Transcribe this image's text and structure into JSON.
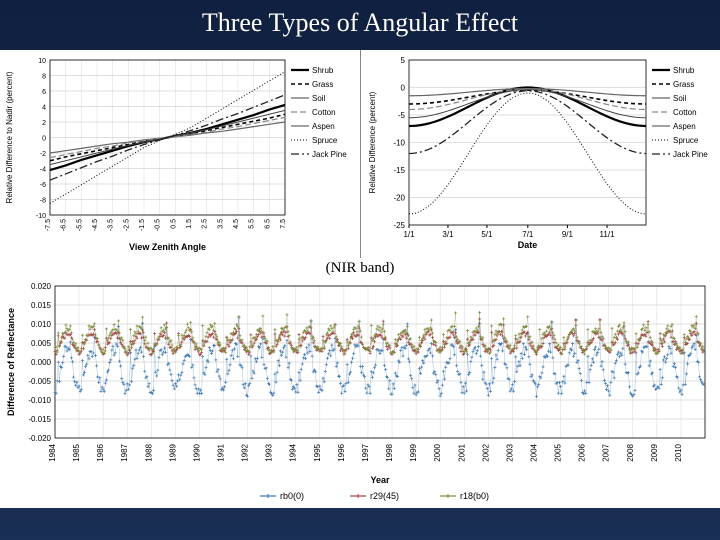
{
  "title": "Three Types of Angular Effect",
  "subtitle": "(NIR band)",
  "colors": {
    "slide_bg_top": "#102040",
    "slide_bg_bot": "#1a2f55",
    "panel_bg": "#ffffff",
    "axis": "#000000",
    "grid": "#bfbfbf"
  },
  "chartA": {
    "type": "line",
    "xlabel": "View Zenith Angle",
    "ylabel": "Relative Difference to Nadir (percent)",
    "xlim": [
      -7.5,
      7.5
    ],
    "ylim": [
      -10,
      10
    ],
    "yticks": [
      -10,
      -8,
      -6,
      -4,
      -2,
      0,
      2,
      4,
      6,
      8,
      10
    ],
    "xticks": [
      -7.5,
      -6.5,
      -5.5,
      -4.5,
      -3.5,
      -2.5,
      -1.5,
      -0.5,
      0.5,
      1.5,
      2.5,
      3.5,
      4.5,
      5.5,
      6.5,
      7.5
    ],
    "series": [
      {
        "name": "Shrub",
        "color": "#000000",
        "dash": "",
        "width": 2.2,
        "y": [
          -4.2,
          -3.6,
          -2.9,
          -2.3,
          -1.7,
          -1.1,
          -0.6,
          -0.2,
          0.2,
          0.6,
          1.1,
          1.7,
          2.3,
          2.9,
          3.6,
          4.2
        ]
      },
      {
        "name": "Grass",
        "color": "#000000",
        "dash": "4,3",
        "width": 1.6,
        "y": [
          -3.0,
          -2.5,
          -2.1,
          -1.7,
          -1.3,
          -0.9,
          -0.5,
          -0.2,
          0.2,
          0.5,
          0.9,
          1.3,
          1.7,
          2.1,
          2.5,
          3.0
        ]
      },
      {
        "name": "Soil",
        "color": "#666666",
        "dash": "",
        "width": 1.2,
        "y": [
          -2.0,
          -1.7,
          -1.4,
          -1.1,
          -0.8,
          -0.6,
          -0.3,
          -0.1,
          0.1,
          0.3,
          0.6,
          0.8,
          1.1,
          1.4,
          1.7,
          2.0
        ]
      },
      {
        "name": "Cotton",
        "color": "#888888",
        "dash": "6,3",
        "width": 1.2,
        "y": [
          -2.6,
          -2.2,
          -1.8,
          -1.4,
          -1.1,
          -0.7,
          -0.4,
          -0.1,
          0.1,
          0.4,
          0.7,
          1.1,
          1.4,
          1.8,
          2.2,
          2.6
        ]
      },
      {
        "name": "Aspen",
        "color": "#444444",
        "dash": "",
        "width": 1.0,
        "y": [
          -3.5,
          -3.0,
          -2.5,
          -2.0,
          -1.5,
          -1.0,
          -0.6,
          -0.2,
          0.2,
          0.6,
          1.0,
          1.5,
          2.0,
          2.5,
          3.0,
          3.5
        ]
      },
      {
        "name": "Spruce",
        "color": "#000000",
        "dash": "1,2",
        "width": 1.0,
        "y": [
          -8.5,
          -7.3,
          -6.1,
          -4.9,
          -3.7,
          -2.5,
          -1.3,
          -0.4,
          0.4,
          1.3,
          2.5,
          3.7,
          4.9,
          6.1,
          7.3,
          8.5
        ]
      },
      {
        "name": "Jack Pine",
        "color": "#222222",
        "dash": "8,3,2,3",
        "width": 1.3,
        "y": [
          -5.5,
          -4.7,
          -3.9,
          -3.1,
          -2.4,
          -1.6,
          -0.9,
          -0.3,
          0.3,
          0.9,
          1.6,
          2.4,
          3.1,
          3.9,
          4.7,
          5.5
        ]
      }
    ]
  },
  "chartB": {
    "type": "line",
    "xlabel": "Date",
    "ylabel": "Relative Difference (percent)",
    "ylim": [
      -25,
      5
    ],
    "yticks": [
      -25,
      -20,
      -15,
      -10,
      -5,
      0,
      5
    ],
    "xticks_labels": [
      "1/1",
      "3/1",
      "5/1",
      "7/1",
      "9/1",
      "11/1"
    ],
    "xticks_pos": [
      0,
      60,
      120,
      183,
      244,
      305
    ],
    "xmax": 365,
    "series": [
      {
        "name": "Shrub",
        "color": "#000000",
        "dash": "",
        "width": 2.2,
        "y0": -7,
        "peak": 0,
        "shape": "cos"
      },
      {
        "name": "Grass",
        "color": "#000000",
        "dash": "4,3",
        "width": 1.6,
        "y0": -3,
        "peak": -0.5,
        "shape": "cos"
      },
      {
        "name": "Soil",
        "color": "#666666",
        "dash": "",
        "width": 1.2,
        "y0": -1.5,
        "peak": -0.2,
        "shape": "cos"
      },
      {
        "name": "Cotton",
        "color": "#888888",
        "dash": "6,3",
        "width": 1.2,
        "y0": -4,
        "peak": -0.3,
        "shape": "cos"
      },
      {
        "name": "Aspen",
        "color": "#444444",
        "dash": "",
        "width": 1.0,
        "y0": -5.5,
        "peak": -0.4,
        "shape": "cos"
      },
      {
        "name": "Spruce",
        "color": "#000000",
        "dash": "1,2",
        "width": 1.0,
        "y0": -23,
        "peak": -1,
        "shape": "cos"
      },
      {
        "name": "Jack Pine",
        "color": "#222222",
        "dash": "8,3,2,3",
        "width": 1.3,
        "y0": -12,
        "peak": -0.6,
        "shape": "cos"
      }
    ]
  },
  "chartC": {
    "type": "scatter-timeseries",
    "xlabel": "Year",
    "ylabel": "Difference of Reflectance",
    "ylim": [
      -0.02,
      0.02
    ],
    "yticks": [
      -0.02,
      -0.015,
      -0.01,
      -0.005,
      0.0,
      0.005,
      0.01,
      0.015,
      0.02
    ],
    "years": [
      1984,
      1985,
      1986,
      1987,
      1988,
      1989,
      1990,
      1991,
      1992,
      1993,
      1994,
      1995,
      1996,
      1997,
      1998,
      1999,
      2000,
      2001,
      2002,
      2003,
      2004,
      2005,
      2006,
      2007,
      2008,
      2009,
      2010
    ],
    "series": [
      {
        "name": "rb0(0)",
        "color": "#3a75b0",
        "marker": "+",
        "mean": -0.002,
        "amp": 0.009
      },
      {
        "name": "r29(45)",
        "color": "#a04040",
        "marker": "+",
        "mean": 0.005,
        "amp": 0.004
      },
      {
        "name": "r18(b0)",
        "color": "#7a8a3a",
        "marker": "+",
        "mean": 0.006,
        "amp": 0.005
      }
    ],
    "points_per_year": 22
  }
}
